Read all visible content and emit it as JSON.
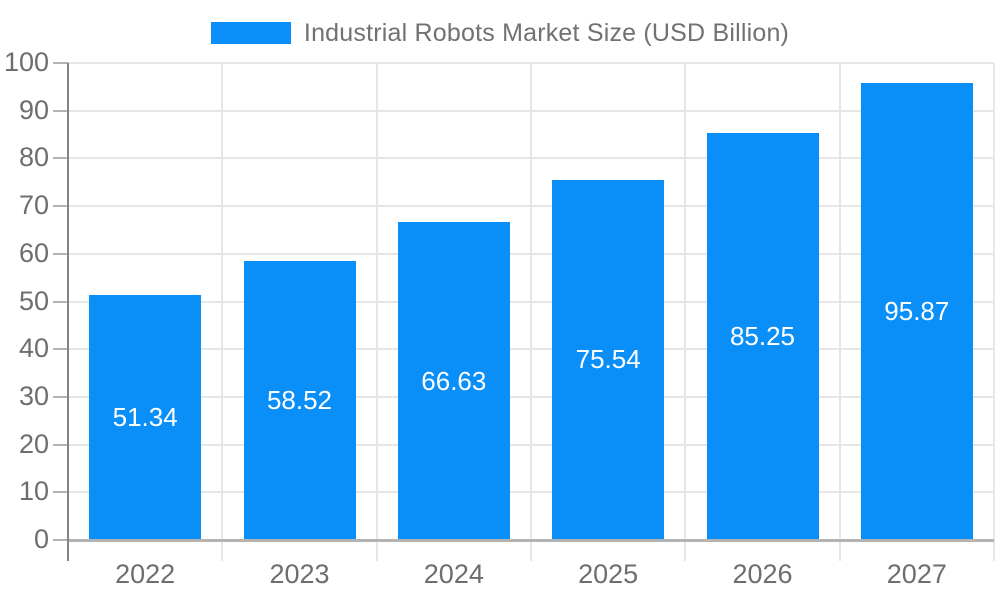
{
  "legend": {
    "label": "Industrial Robots Market Size (USD Billion)",
    "swatch_color": "#0a8ff9"
  },
  "chart_data": {
    "type": "bar",
    "title": "Industrial Robots Market Size (USD Billion)",
    "categories": [
      "2022",
      "2023",
      "2024",
      "2025",
      "2026",
      "2027"
    ],
    "series": [
      {
        "name": "Industrial Robots Market Size (USD Billion)",
        "values": [
          51.34,
          58.52,
          66.63,
          75.54,
          85.25,
          95.87
        ]
      }
    ],
    "value_labels": [
      "51.34",
      "58.52",
      "66.63",
      "75.54",
      "85.25",
      "95.87"
    ],
    "xlabel": "",
    "ylabel": "",
    "ylim": [
      0,
      100
    ],
    "yticks": [
      0,
      10,
      20,
      30,
      40,
      50,
      60,
      70,
      80,
      90,
      100
    ],
    "grid": true,
    "legend_position": "top",
    "bar_color": "#0a8ff9"
  },
  "colors": {
    "bar": "#0a8ff9",
    "axis_line": "#848484",
    "gridline": "#e6e6e6",
    "baseline": "#b3b3b3",
    "tick": "#b3b3b3",
    "label_text": "#6e6e6e",
    "value_text": "#ffffff",
    "background": "#ffffff"
  }
}
